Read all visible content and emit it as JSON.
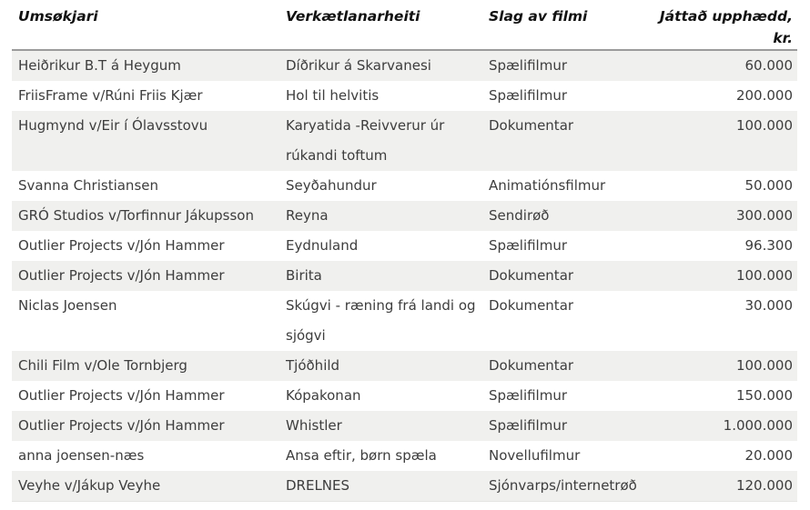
{
  "table": {
    "headers": [
      {
        "label": "Umsøkjari",
        "align": "left"
      },
      {
        "label": "Verkætlanarheiti",
        "align": "left"
      },
      {
        "label": "Slag av filmi",
        "align": "left"
      },
      {
        "label": "Játtað upphædd,\nkr.",
        "align": "right"
      }
    ],
    "rows": [
      [
        "Heiðrikur B.T á Heygum",
        "Díðrikur á Skarvanesi",
        "Spælifilmur",
        "60.000"
      ],
      [
        "FriisFrame v/Rúni Friis Kjær",
        "Hol til helvitis",
        "Spælifilmur",
        "200.000"
      ],
      [
        "Hugmynd v/Eir í Ólavsstovu",
        "Karyatida -Reivverur úr\nrúkandi toftum",
        "Dokumentar",
        "100.000"
      ],
      [
        "Svanna Christiansen",
        "Seyðahundur",
        "Animatiónsfilmur",
        "50.000"
      ],
      [
        "GRÓ Studios v/Torfinnur Jákupsson",
        "Reyna",
        "Sendirøð",
        "300.000"
      ],
      [
        "Outlier Projects v/Jón Hammer",
        "Eydnuland",
        "Spælifilmur",
        "96.300"
      ],
      [
        "Outlier Projects v/Jón Hammer",
        "Birita",
        "Dokumentar",
        "100.000"
      ],
      [
        "Niclas Joensen",
        "Skúgvi - ræning frá landi og\nsjógvi",
        "Dokumentar",
        "30.000"
      ],
      [
        "Chili Film v/Ole Tornbjerg",
        "Tjóðhild",
        "Dokumentar",
        "100.000"
      ],
      [
        "Outlier Projects v/Jón Hammer",
        "Kópakonan",
        "Spælifilmur",
        "150.000"
      ],
      [
        "Outlier Projects v/Jón Hammer",
        "Whistler",
        "Spælifilmur",
        "1.000.000"
      ],
      [
        "anna joensen-næs",
        "Ansa eftir, børn spæla",
        "Novellufilmur",
        "20.000"
      ],
      [
        "Veyhe v/Jákup Veyhe",
        "DRELNES",
        "Sjónvarps/internetrøð",
        "120.000"
      ]
    ],
    "style": {
      "stripe_color": "#f0f0ee",
      "header_text_color": "#111111",
      "body_text_color": "#3d3d3d",
      "divider_color": "#9b9b9b"
    }
  },
  "chart_data": {
    "type": "table",
    "title": "",
    "columns": [
      "Umsøkjari",
      "Verkætlanarheiti",
      "Slag av filmi",
      "Játtað upphædd, kr."
    ],
    "rows": [
      [
        "Heiðrikur B.T á Heygum",
        "Díðrikur á Skarvanesi",
        "Spælifilmur",
        "60.000"
      ],
      [
        "FriisFrame v/Rúni Friis Kjær",
        "Hol til helvitis",
        "Spælifilmur",
        "200.000"
      ],
      [
        "Hugmynd v/Eir í Ólavsstovu",
        "Karyatida -Reivverur úr rúkandi toftum",
        "Dokumentar",
        "100.000"
      ],
      [
        "Svanna Christiansen",
        "Seyðahundur",
        "Animatiónsfilmur",
        "50.000"
      ],
      [
        "GRÓ Studios v/Torfinnur Jákupsson",
        "Reyna",
        "Sendirøð",
        "300.000"
      ],
      [
        "Outlier Projects v/Jón Hammer",
        "Eydnuland",
        "Spælifilmur",
        "96.300"
      ],
      [
        "Outlier Projects v/Jón Hammer",
        "Birita",
        "Dokumentar",
        "100.000"
      ],
      [
        "Niclas Joensen",
        "Skúgvi - ræning frá landi og sjógvi",
        "Dokumentar",
        "30.000"
      ],
      [
        "Chili Film v/Ole Tornbjerg",
        "Tjóðhild",
        "Dokumentar",
        "100.000"
      ],
      [
        "Outlier Projects v/Jón Hammer",
        "Kópakonan",
        "Spælifilmur",
        "150.000"
      ],
      [
        "Outlier Projects v/Jón Hammer",
        "Whistler",
        "Spælifilmur",
        "1.000.000"
      ],
      [
        "anna joensen-næs",
        "Ansa eftir, børn spæla",
        "Novellufilmur",
        "20.000"
      ],
      [
        "Veyhe v/Jákup Veyhe",
        "DRELNES",
        "Sjónvarps/internetrøð",
        "120.000"
      ]
    ],
    "amounts_kr": [
      60000,
      200000,
      100000,
      50000,
      300000,
      96300,
      100000,
      30000,
      100000,
      150000,
      1000000,
      20000,
      120000
    ]
  }
}
